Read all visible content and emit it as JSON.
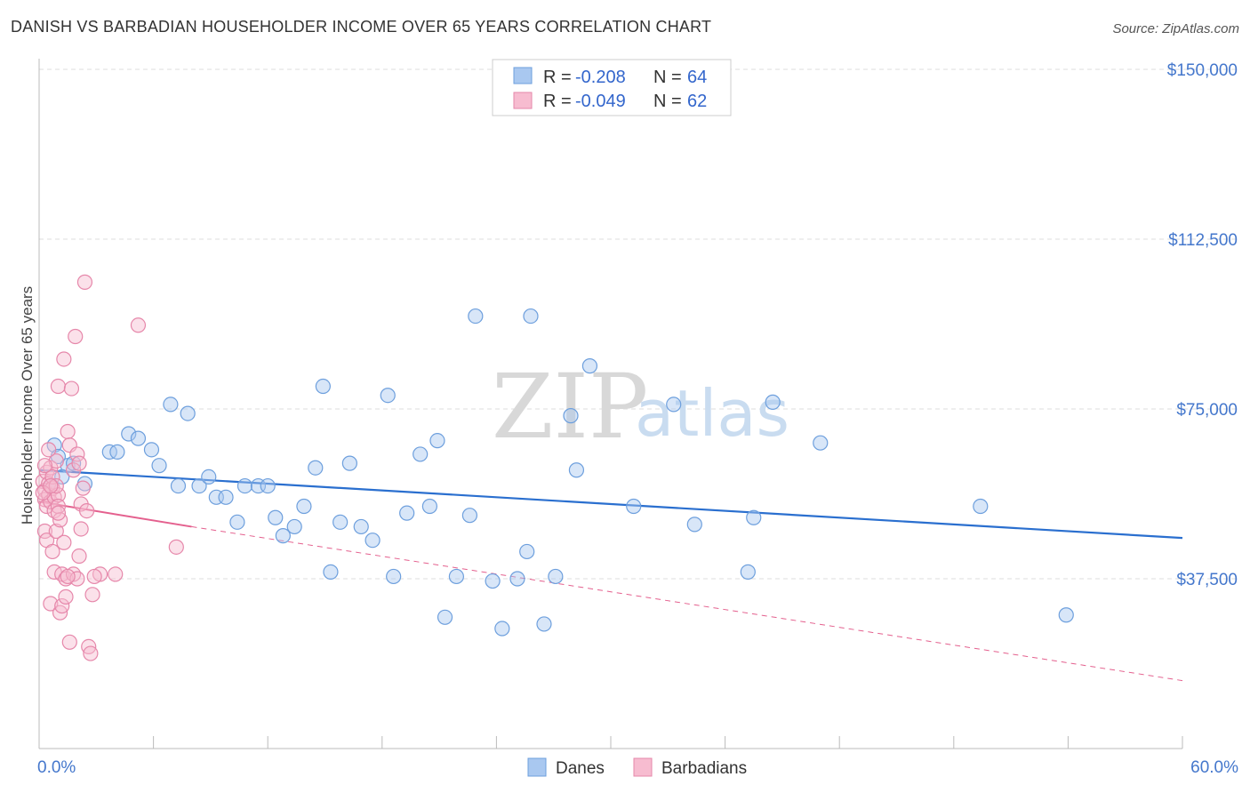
{
  "title": "DANISH VS BARBADIAN HOUSEHOLDER INCOME OVER 65 YEARS CORRELATION CHART",
  "source": "Source: ZipAtlas.com",
  "watermark": {
    "zip": "ZIP",
    "atlas": "atlas"
  },
  "legend": {
    "r_label": "R =",
    "n_label": "N =",
    "rows": [
      {
        "r": "-0.208",
        "n": "64",
        "fill": "#a9c8f0",
        "stroke": "#6d9fdd"
      },
      {
        "r": "-0.049",
        "n": "62",
        "fill": "#f7bcd0",
        "stroke": "#e687aa"
      }
    ]
  },
  "bottom_legend": [
    {
      "label": "Danes",
      "fill": "#a9c8f0",
      "stroke": "#6d9fdd"
    },
    {
      "label": "Barbadians",
      "fill": "#f7bcd0",
      "stroke": "#e687aa"
    }
  ],
  "chart_data": {
    "type": "scatter",
    "title": "DANISH VS BARBADIAN HOUSEHOLDER INCOME OVER 65 YEARS CORRELATION CHART",
    "xlabel": "",
    "ylabel": "Householder Income Over 65 years",
    "xlim": [
      0,
      60
    ],
    "ylim": [
      0,
      155000
    ],
    "x_tick_labels": [
      "0.0%",
      "60.0%"
    ],
    "y_ticks": [
      37500,
      75000,
      112500,
      150000
    ],
    "y_tick_labels": [
      "$37,500",
      "$75,000",
      "$112,500",
      "$150,000"
    ],
    "series": [
      {
        "name": "Danes",
        "color": "#6d9fdd",
        "fill": "#a9c8f0",
        "trend": {
          "x": [
            0,
            60
          ],
          "y": [
            61500,
            46500
          ],
          "color": "#2a6fcf",
          "style": "solid"
        },
        "points": [
          [
            0.8,
            67000
          ],
          [
            1.0,
            64500
          ],
          [
            1.5,
            62500
          ],
          [
            1.8,
            63000
          ],
          [
            2.4,
            58500
          ],
          [
            3.7,
            65500
          ],
          [
            4.1,
            65500
          ],
          [
            4.7,
            69500
          ],
          [
            5.2,
            68500
          ],
          [
            5.9,
            66000
          ],
          [
            6.3,
            62500
          ],
          [
            6.9,
            76000
          ],
          [
            7.3,
            58000
          ],
          [
            7.8,
            74000
          ],
          [
            8.4,
            58000
          ],
          [
            8.9,
            60000
          ],
          [
            9.3,
            55500
          ],
          [
            9.8,
            55500
          ],
          [
            10.4,
            50000
          ],
          [
            10.8,
            58000
          ],
          [
            11.5,
            58000
          ],
          [
            12.0,
            58000
          ],
          [
            12.4,
            51000
          ],
          [
            12.8,
            47000
          ],
          [
            13.4,
            49000
          ],
          [
            13.9,
            53500
          ],
          [
            14.5,
            62000
          ],
          [
            14.9,
            80000
          ],
          [
            15.3,
            39000
          ],
          [
            15.8,
            50000
          ],
          [
            16.3,
            63000
          ],
          [
            16.9,
            49000
          ],
          [
            17.5,
            46000
          ],
          [
            18.3,
            78000
          ],
          [
            18.6,
            38000
          ],
          [
            19.3,
            52000
          ],
          [
            20.0,
            65000
          ],
          [
            20.5,
            53500
          ],
          [
            20.9,
            68000
          ],
          [
            21.3,
            29000
          ],
          [
            21.9,
            38000
          ],
          [
            22.6,
            51500
          ],
          [
            22.9,
            95500
          ],
          [
            23.8,
            37000
          ],
          [
            24.3,
            26500
          ],
          [
            25.1,
            37500
          ],
          [
            25.6,
            43500
          ],
          [
            25.8,
            95500
          ],
          [
            26.5,
            27500
          ],
          [
            27.1,
            38000
          ],
          [
            27.9,
            73500
          ],
          [
            28.2,
            61500
          ],
          [
            28.9,
            84500
          ],
          [
            31.2,
            53500
          ],
          [
            33.3,
            76000
          ],
          [
            34.4,
            49500
          ],
          [
            37.2,
            39000
          ],
          [
            37.5,
            51000
          ],
          [
            38.5,
            76500
          ],
          [
            41.0,
            67500
          ],
          [
            49.4,
            53500
          ],
          [
            53.9,
            29500
          ],
          [
            0.6,
            58000
          ],
          [
            1.2,
            60000
          ]
        ]
      },
      {
        "name": "Barbadians",
        "color": "#e687aa",
        "fill": "#f7bcd0",
        "trend": {
          "x": [
            0,
            8
          ],
          "y": [
            54500,
            49000
          ],
          "color": "#e4608e",
          "style": "solid"
        },
        "trend_extension": {
          "x": [
            8,
            60
          ],
          "y": [
            49000,
            15000
          ],
          "color": "#e4608e",
          "style": "dashed"
        },
        "points": [
          [
            0.2,
            59000
          ],
          [
            0.3,
            57000
          ],
          [
            0.3,
            55000
          ],
          [
            0.4,
            61000
          ],
          [
            0.4,
            53500
          ],
          [
            0.5,
            58500
          ],
          [
            0.5,
            56000
          ],
          [
            0.6,
            62000
          ],
          [
            0.6,
            54500
          ],
          [
            0.7,
            57500
          ],
          [
            0.7,
            60000
          ],
          [
            0.8,
            55500
          ],
          [
            0.8,
            52500
          ],
          [
            0.9,
            63500
          ],
          [
            1.0,
            56000
          ],
          [
            0.3,
            48000
          ],
          [
            0.4,
            46000
          ],
          [
            0.6,
            32000
          ],
          [
            0.7,
            43500
          ],
          [
            0.8,
            39000
          ],
          [
            0.9,
            48000
          ],
          [
            1.0,
            80000
          ],
          [
            1.0,
            53500
          ],
          [
            1.1,
            50500
          ],
          [
            1.1,
            30000
          ],
          [
            1.2,
            38500
          ],
          [
            1.2,
            31500
          ],
          [
            1.3,
            86000
          ],
          [
            1.3,
            45500
          ],
          [
            1.4,
            37500
          ],
          [
            1.5,
            70000
          ],
          [
            1.6,
            67000
          ],
          [
            1.6,
            23500
          ],
          [
            1.7,
            79500
          ],
          [
            1.8,
            61500
          ],
          [
            1.8,
            38500
          ],
          [
            1.9,
            91000
          ],
          [
            2.0,
            65000
          ],
          [
            2.0,
            37500
          ],
          [
            2.1,
            63000
          ],
          [
            2.1,
            42500
          ],
          [
            2.2,
            54000
          ],
          [
            2.2,
            48500
          ],
          [
            2.4,
            103000
          ],
          [
            2.3,
            57500
          ],
          [
            2.5,
            52500
          ],
          [
            2.6,
            22500
          ],
          [
            2.7,
            21000
          ],
          [
            2.8,
            34000
          ],
          [
            3.2,
            38500
          ],
          [
            4.0,
            38500
          ],
          [
            5.2,
            93500
          ],
          [
            7.2,
            44500
          ],
          [
            1.4,
            33500
          ],
          [
            0.5,
            66000
          ],
          [
            0.9,
            58000
          ],
          [
            1.0,
            52000
          ],
          [
            0.2,
            56500
          ],
          [
            0.3,
            62500
          ],
          [
            1.5,
            38000
          ],
          [
            2.9,
            38000
          ],
          [
            0.6,
            58000
          ]
        ]
      }
    ]
  }
}
